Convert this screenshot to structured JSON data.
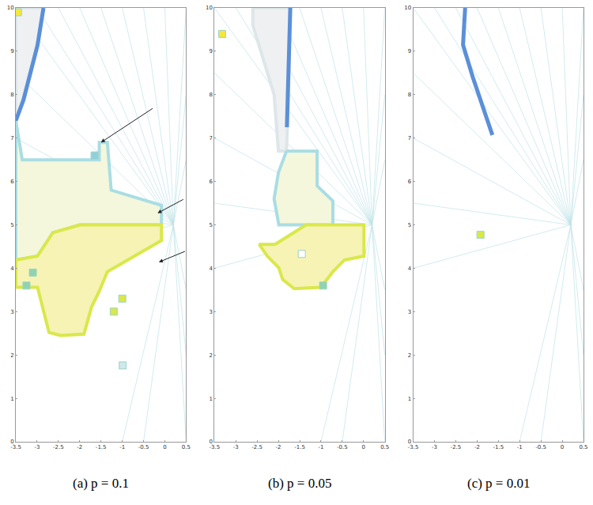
{
  "chart_data": [
    {
      "type": "region_map",
      "title": "(a) p = 0.1",
      "xlim": [
        -3.5,
        0.5
      ],
      "ylim": [
        0,
        10
      ],
      "xticks": [
        -3.5,
        -3,
        -2.5,
        -2,
        -1.5,
        -1,
        -0.5,
        0,
        0.5
      ],
      "yticks": [
        0,
        1,
        2,
        3,
        4,
        5,
        6,
        7,
        8,
        9,
        10
      ],
      "mesh": {
        "center": [
          0.2,
          5.0
        ],
        "color": "#bfe3e6",
        "ends": [
          [
            -3.5,
            10
          ],
          [
            -3,
            10
          ],
          [
            -2.5,
            10
          ],
          [
            -2,
            10
          ],
          [
            -1.5,
            10
          ],
          [
            -1,
            10
          ],
          [
            -0.5,
            10
          ],
          [
            0,
            10
          ],
          [
            0.5,
            10
          ],
          [
            0.5,
            8
          ],
          [
            0.5,
            6.5
          ],
          [
            0.5,
            3.5
          ],
          [
            0.5,
            2
          ],
          [
            0.5,
            0
          ],
          [
            -0.5,
            0
          ],
          [
            -1,
            0
          ],
          [
            -3.5,
            8.5
          ],
          [
            -3.5,
            7
          ],
          [
            -3.5,
            5.5
          ],
          [
            -3.5,
            4
          ]
        ]
      },
      "regions": [
        {
          "color": "#a9dde3",
          "fill": "#f4f7dc",
          "outline": [
            [
              -3.5,
              7.4
            ],
            [
              -3.35,
              6.5
            ],
            [
              -1.54,
              6.5
            ],
            [
              -1.54,
              6.9
            ],
            [
              -1.35,
              6.9
            ],
            [
              -1.26,
              5.8
            ],
            [
              -0.08,
              5.45
            ],
            [
              -0.08,
              5.0
            ],
            [
              -1.99,
              5.0
            ],
            [
              -2.63,
              4.82
            ],
            [
              -2.99,
              4.28
            ],
            [
              -3.5,
              4.19
            ]
          ]
        },
        {
          "color": "#d9e84a",
          "fill": "#f6f3b5",
          "outline": [
            [
              -1.99,
              5.0
            ],
            [
              -0.08,
              5.0
            ],
            [
              -0.08,
              4.64
            ],
            [
              -1.35,
              3.92
            ],
            [
              -1.54,
              3.47
            ],
            [
              -1.72,
              3.11
            ],
            [
              -1.9,
              2.48
            ],
            [
              -2.45,
              2.45
            ],
            [
              -2.72,
              2.52
            ],
            [
              -2.85,
              3.02
            ],
            [
              -2.99,
              3.56
            ],
            [
              -3.5,
              3.56
            ],
            [
              -3.5,
              4.19
            ],
            [
              -2.99,
              4.28
            ],
            [
              -2.63,
              4.82
            ]
          ]
        },
        {
          "color": "#dde6e9",
          "fill": "#eef0f2",
          "outline": [
            [
              -3.5,
              10
            ],
            [
              -2.85,
              10
            ],
            [
              -2.99,
              9.14
            ],
            [
              -3.32,
              7.88
            ],
            [
              -3.5,
              7.4
            ]
          ]
        }
      ],
      "lines": [
        {
          "color": "#5b8fd9",
          "points": [
            [
              -2.85,
              10
            ],
            [
              -2.99,
              9.14
            ],
            [
              -3.32,
              7.88
            ],
            [
              -3.5,
              7.4
            ]
          ]
        }
      ],
      "spots": [
        {
          "x": -3.45,
          "y": 9.9,
          "color": "#f5e83a"
        },
        {
          "x": -3.1,
          "y": 3.9,
          "color": "#8fd3b0"
        },
        {
          "x": -3.25,
          "y": 3.6,
          "color": "#8fd3b0"
        },
        {
          "x": -1.65,
          "y": 6.6,
          "color": "#8fcfe0"
        },
        {
          "x": -1.0,
          "y": 3.3,
          "color": "#d9e84a"
        },
        {
          "x": -1.2,
          "y": 3.0,
          "color": "#d9e84a"
        },
        {
          "x": -0.99,
          "y": 1.76,
          "color": "#cfe7ee"
        }
      ],
      "arrows": [
        {
          "x": -1.5,
          "y": 6.9,
          "ax": -0.26,
          "ay": 7.7
        },
        {
          "x": -0.17,
          "y": 5.27,
          "ax": 0.46,
          "ay": 5.6
        },
        {
          "x": -0.14,
          "y": 4.14,
          "ax": 0.5,
          "ay": 4.4
        }
      ]
    },
    {
      "type": "region_map",
      "title": "(b) p = 0.05",
      "xlim": [
        -3.5,
        0.5
      ],
      "ylim": [
        0,
        10
      ],
      "xticks": [
        -3.5,
        -3,
        -2.5,
        -2,
        -1.5,
        -1,
        -0.5,
        0,
        0.5
      ],
      "yticks": [
        0,
        1,
        2,
        3,
        4,
        5,
        6,
        7,
        8,
        9,
        10
      ],
      "mesh": {
        "center": [
          0.2,
          5.0
        ],
        "color": "#bfe3e6",
        "ends": [
          [
            -3.5,
            10
          ],
          [
            -3,
            10
          ],
          [
            -2.5,
            10
          ],
          [
            -2,
            10
          ],
          [
            -1.5,
            10
          ],
          [
            -1,
            10
          ],
          [
            -0.5,
            10
          ],
          [
            0,
            10
          ],
          [
            0.5,
            10
          ],
          [
            0.5,
            8
          ],
          [
            0.5,
            6.5
          ],
          [
            0.5,
            3.5
          ],
          [
            0.5,
            2
          ],
          [
            0.5,
            0
          ],
          [
            -0.5,
            0
          ],
          [
            -1,
            0
          ],
          [
            -3.5,
            8.5
          ],
          [
            -3.5,
            7
          ],
          [
            -3.5,
            5.5
          ],
          [
            -3.5,
            4
          ]
        ]
      },
      "regions": [
        {
          "color": "#dde6e9",
          "fill": "#eef0f2",
          "outline": [
            [
              -2.6,
              10
            ],
            [
              -1.72,
              10
            ],
            [
              -1.77,
              7.7
            ],
            [
              -1.81,
              6.7
            ],
            [
              -2.0,
              6.7
            ],
            [
              -2.1,
              8.0
            ],
            [
              -2.6,
              9.6
            ]
          ]
        },
        {
          "color": "#a9dde3",
          "fill": "#f4f7dc",
          "outline": [
            [
              -1.81,
              6.7
            ],
            [
              -1.09,
              6.7
            ],
            [
              -1.09,
              5.9
            ],
            [
              -0.72,
              5.55
            ],
            [
              -0.72,
              5.0
            ],
            [
              -1.99,
              5.0
            ],
            [
              -2.1,
              5.6
            ],
            [
              -2.0,
              6.2
            ]
          ]
        },
        {
          "color": "#d9e84a",
          "fill": "#f6f3b5",
          "outline": [
            [
              -2.08,
              4.55
            ],
            [
              -1.35,
              5.0
            ],
            [
              0.01,
              5.0
            ],
            [
              0.01,
              4.28
            ],
            [
              -0.45,
              4.19
            ],
            [
              -0.72,
              3.92
            ],
            [
              -1.0,
              3.56
            ],
            [
              -1.63,
              3.53
            ],
            [
              -1.9,
              3.74
            ],
            [
              -1.99,
              4.01
            ],
            [
              -2.26,
              4.28
            ],
            [
              -2.45,
              4.55
            ]
          ]
        }
      ],
      "lines": [
        {
          "color": "#5b8fd9",
          "points": [
            [
              -1.72,
              10
            ],
            [
              -1.77,
              7.7
            ],
            [
              -1.8,
              7.25
            ]
          ]
        }
      ],
      "spots": [
        {
          "x": -3.32,
          "y": 9.4,
          "color": "#f5e83a"
        },
        {
          "x": -1.45,
          "y": 4.33,
          "color": "#ffffff"
        },
        {
          "x": -0.95,
          "y": 3.6,
          "color": "#8fd3b0"
        }
      ],
      "arrows": []
    },
    {
      "type": "region_map",
      "title": "(c) p = 0.01",
      "xlim": [
        -3.5,
        0.5
      ],
      "ylim": [
        0,
        10
      ],
      "xticks": [
        -3.5,
        -3,
        -2.5,
        -2,
        -1.5,
        -1,
        -0.5,
        0,
        0.5
      ],
      "yticks": [
        0,
        1,
        2,
        3,
        4,
        5,
        6,
        7,
        8,
        9,
        10
      ],
      "mesh": {
        "center": [
          0.2,
          5.0
        ],
        "color": "#bfe3e6",
        "ends": [
          [
            -3.5,
            10
          ],
          [
            -3,
            10
          ],
          [
            -2.5,
            10
          ],
          [
            -2,
            10
          ],
          [
            -1.5,
            10
          ],
          [
            -1,
            10
          ],
          [
            -0.5,
            10
          ],
          [
            0,
            10
          ],
          [
            0.5,
            10
          ],
          [
            0.5,
            8
          ],
          [
            0.5,
            6.5
          ],
          [
            0.5,
            3.5
          ],
          [
            0.5,
            2
          ],
          [
            0.5,
            0
          ],
          [
            -0.5,
            0
          ],
          [
            -1,
            0
          ],
          [
            -3.5,
            8.5
          ],
          [
            -3.5,
            7
          ],
          [
            -3.5,
            5.5
          ],
          [
            -3.5,
            4
          ]
        ]
      },
      "regions": [],
      "lines": [
        {
          "color": "#5b8fd9",
          "points": [
            [
              -2.28,
              10
            ],
            [
              -2.33,
              9.15
            ],
            [
              -2.1,
              8.4
            ],
            [
              -1.85,
              7.7
            ],
            [
              -1.64,
              7.07
            ]
          ]
        }
      ],
      "spots": [
        {
          "x": -1.92,
          "y": 4.77,
          "color": "#d9e84a"
        }
      ],
      "arrows": []
    }
  ]
}
